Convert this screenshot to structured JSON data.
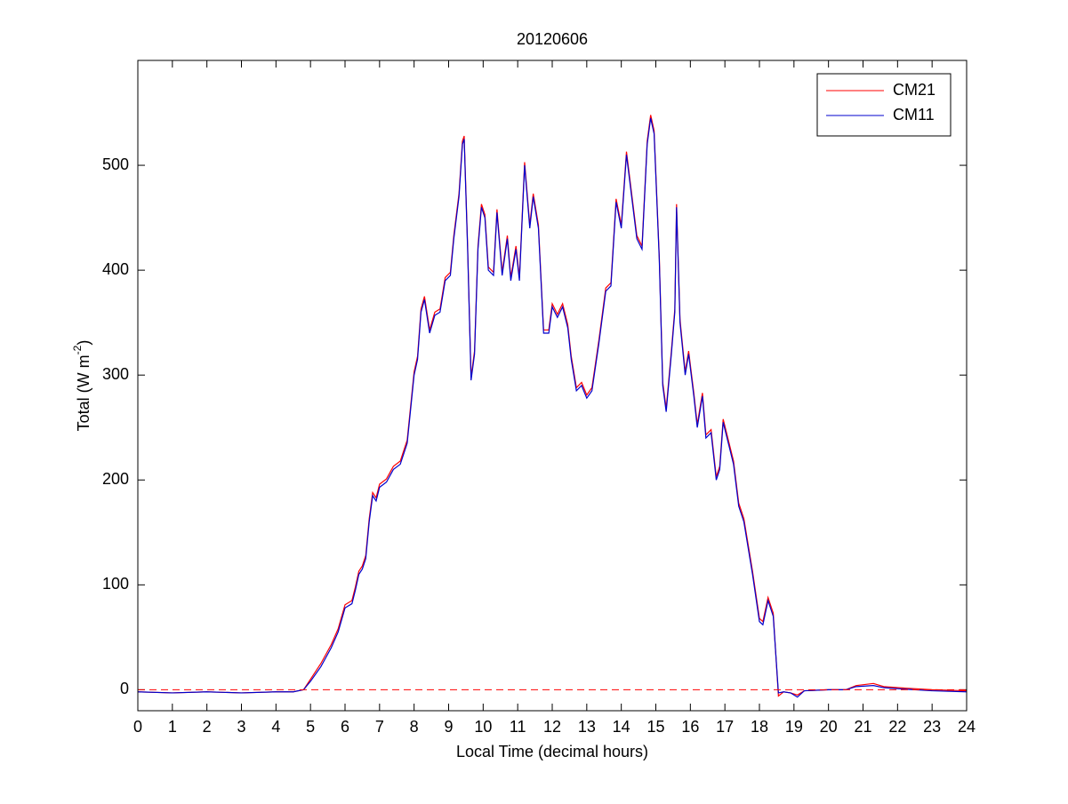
{
  "chart_data": {
    "type": "line",
    "title": "20120606",
    "xlabel": "Local Time (decimal hours)",
    "ylabel": {
      "text": "Total (W m",
      "sup": "-2",
      "end": ")"
    },
    "xlim": [
      0,
      24
    ],
    "xticks": [
      0,
      1,
      2,
      3,
      4,
      5,
      6,
      7,
      8,
      9,
      10,
      11,
      12,
      13,
      14,
      15,
      16,
      17,
      18,
      19,
      20,
      21,
      22,
      23,
      24
    ],
    "ylim": [
      -20,
      600
    ],
    "yticks": [
      0,
      100,
      200,
      300,
      400,
      500
    ],
    "legend": "upper-right",
    "reference_line": {
      "value": 0,
      "color": "#ff0000",
      "style": "dashed"
    },
    "x": [
      0,
      1,
      2,
      3,
      4,
      4.5,
      4.8,
      5,
      5.3,
      5.6,
      5.8,
      6,
      6.2,
      6.3,
      6.4,
      6.5,
      6.6,
      6.7,
      6.8,
      6.9,
      7,
      7.2,
      7.4,
      7.6,
      7.8,
      8,
      8.1,
      8.2,
      8.3,
      8.45,
      8.6,
      8.75,
      8.9,
      9.05,
      9.15,
      9.3,
      9.4,
      9.45,
      9.55,
      9.65,
      9.75,
      9.85,
      9.95,
      10.05,
      10.15,
      10.3,
      10.4,
      10.55,
      10.7,
      10.8,
      10.95,
      11.05,
      11.2,
      11.35,
      11.45,
      11.6,
      11.75,
      11.9,
      12,
      12.15,
      12.3,
      12.45,
      12.55,
      12.7,
      12.85,
      13,
      13.15,
      13.35,
      13.55,
      13.7,
      13.85,
      14,
      14.15,
      14.3,
      14.45,
      14.6,
      14.75,
      14.85,
      14.95,
      15.1,
      15.2,
      15.3,
      15.45,
      15.55,
      15.6,
      15.7,
      15.85,
      15.95,
      16.1,
      16.2,
      16.35,
      16.45,
      16.6,
      16.75,
      16.85,
      16.95,
      17.1,
      17.25,
      17.4,
      17.55,
      17.8,
      18,
      18.1,
      18.25,
      18.4,
      18.55,
      18.7,
      18.9,
      19.1,
      19.3,
      20,
      20.5,
      20.8,
      21.3,
      21.6,
      22,
      23,
      24
    ],
    "series": [
      {
        "name": "CM21",
        "color": "#ff0000",
        "values": [
          -2,
          -3,
          -2,
          -3,
          -2,
          -2,
          0,
          10,
          25,
          43,
          58,
          81,
          85,
          98,
          113,
          118,
          128,
          163,
          188,
          183,
          196,
          201,
          213,
          218,
          238,
          303,
          318,
          363,
          375,
          343,
          360,
          363,
          393,
          398,
          433,
          473,
          523,
          528,
          423,
          298,
          323,
          423,
          463,
          453,
          403,
          398,
          458,
          398,
          433,
          393,
          423,
          393,
          503,
          443,
          473,
          443,
          343,
          343,
          368,
          358,
          368,
          348,
          318,
          288,
          293,
          281,
          288,
          333,
          383,
          388,
          468,
          443,
          513,
          473,
          433,
          423,
          523,
          548,
          533,
          413,
          293,
          268,
          323,
          363,
          463,
          353,
          303,
          323,
          283,
          253,
          283,
          243,
          248,
          203,
          213,
          258,
          238,
          218,
          178,
          163,
          113,
          68,
          65,
          88,
          73,
          -6,
          -2,
          -3,
          -5,
          -1,
          0,
          0,
          4,
          6,
          3,
          2,
          0,
          -1
        ]
      },
      {
        "name": "CM11",
        "color": "#0000cc",
        "values": [
          -2,
          -3,
          -2,
          -3,
          -2,
          -2,
          0,
          8,
          22,
          40,
          55,
          78,
          82,
          95,
          110,
          115,
          125,
          160,
          185,
          180,
          193,
          198,
          210,
          215,
          235,
          300,
          315,
          360,
          372,
          340,
          357,
          360,
          390,
          395,
          430,
          470,
          520,
          525,
          420,
          295,
          320,
          420,
          460,
          450,
          400,
          395,
          455,
          395,
          430,
          390,
          420,
          390,
          500,
          440,
          470,
          440,
          340,
          340,
          365,
          355,
          365,
          345,
          315,
          285,
          290,
          278,
          285,
          330,
          380,
          385,
          465,
          440,
          510,
          470,
          430,
          420,
          520,
          545,
          530,
          410,
          290,
          265,
          320,
          360,
          460,
          350,
          300,
          320,
          280,
          250,
          280,
          240,
          245,
          200,
          210,
          255,
          235,
          215,
          175,
          160,
          110,
          65,
          62,
          85,
          70,
          -3,
          -2,
          -3,
          -7,
          -1,
          0,
          0,
          3,
          4,
          2,
          1,
          -1,
          -2
        ]
      }
    ]
  }
}
